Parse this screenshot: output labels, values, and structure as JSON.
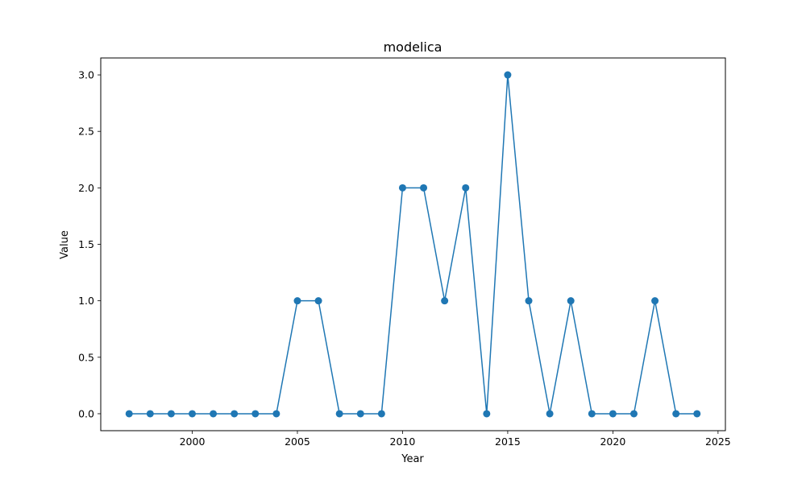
{
  "chart_data": {
    "type": "line",
    "title": "modelica",
    "xlabel": "Year",
    "ylabel": "Value",
    "xlim": [
      1995.65,
      2025.35
    ],
    "ylim": [
      -0.15,
      3.15
    ],
    "xticks": [
      2000,
      2005,
      2010,
      2015,
      2020,
      2025
    ],
    "yticks": [
      0.0,
      0.5,
      1.0,
      1.5,
      2.0,
      2.5,
      3.0
    ],
    "ytick_labels": [
      "0.0",
      "0.5",
      "1.0",
      "1.5",
      "2.0",
      "2.5",
      "3.0"
    ],
    "grid": false,
    "legend": "none",
    "color": "#1f77b4",
    "series": [
      {
        "x": [
          1997,
          1998,
          1999,
          2000,
          2001,
          2002,
          2003,
          2004,
          2005,
          2006,
          2007,
          2008,
          2009,
          2010,
          2011,
          2012,
          2013,
          2014,
          2015,
          2016,
          2017,
          2018,
          2019,
          2020,
          2021,
          2022,
          2023,
          2024
        ],
        "values": [
          0,
          0,
          0,
          0,
          0,
          0,
          0,
          0,
          1,
          1,
          0,
          0,
          0,
          2,
          2,
          1,
          2,
          0,
          3,
          1,
          0,
          1,
          0,
          0,
          0,
          1,
          0,
          0
        ]
      }
    ]
  }
}
